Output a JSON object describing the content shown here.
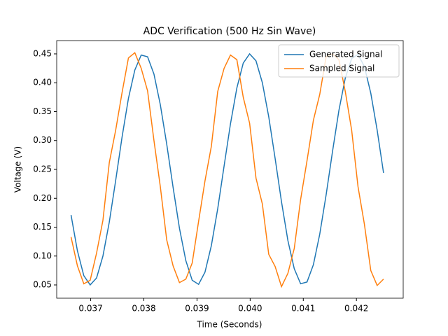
{
  "chart_data": {
    "type": "line",
    "title": "ADC Verification (500 Hz Sin Wave)",
    "xlabel": "Time (Seconds)",
    "ylabel": "Voltage (V)",
    "x": [
      0.03663,
      0.03675,
      0.03687,
      0.03699,
      0.03711,
      0.03723,
      0.03735,
      0.03747,
      0.03759,
      0.03771,
      0.03783,
      0.03795,
      0.03807,
      0.03819,
      0.03831,
      0.03843,
      0.03855,
      0.03867,
      0.03879,
      0.03891,
      0.03903,
      0.03915,
      0.03927,
      0.03939,
      0.03951,
      0.03963,
      0.03975,
      0.03987,
      0.03999,
      0.04011,
      0.04023,
      0.04035,
      0.04047,
      0.04059,
      0.04071,
      0.04083,
      0.04095,
      0.04107,
      0.04119,
      0.04131,
      0.04143,
      0.04155,
      0.04167,
      0.04179,
      0.04191,
      0.04203,
      0.04215,
      0.04227,
      0.04239,
      0.04251
    ],
    "series": [
      {
        "name": "Generated Signal",
        "color": "#1f77b4",
        "values": [
          0.171,
          0.109,
          0.066,
          0.05,
          0.062,
          0.1,
          0.159,
          0.231,
          0.306,
          0.373,
          0.422,
          0.448,
          0.445,
          0.415,
          0.362,
          0.294,
          0.219,
          0.148,
          0.092,
          0.058,
          0.051,
          0.072,
          0.118,
          0.182,
          0.256,
          0.329,
          0.391,
          0.434,
          0.45,
          0.438,
          0.4,
          0.341,
          0.269,
          0.194,
          0.127,
          0.078,
          0.052,
          0.055,
          0.085,
          0.138,
          0.206,
          0.281,
          0.352,
          0.408,
          0.442,
          0.449,
          0.428,
          0.382,
          0.318,
          0.244
        ]
      },
      {
        "name": "Sampled Signal",
        "color": "#ff7f0e",
        "values": [
          0.133,
          0.083,
          0.052,
          0.058,
          0.105,
          0.162,
          0.262,
          0.318,
          0.383,
          0.443,
          0.452,
          0.425,
          0.386,
          0.3,
          0.22,
          0.128,
          0.083,
          0.054,
          0.06,
          0.088,
          0.16,
          0.23,
          0.29,
          0.385,
          0.425,
          0.448,
          0.44,
          0.375,
          0.33,
          0.235,
          0.19,
          0.103,
          0.082,
          0.047,
          0.07,
          0.113,
          0.198,
          0.265,
          0.335,
          0.38,
          0.445,
          0.45,
          0.44,
          0.385,
          0.318,
          0.22,
          0.155,
          0.075,
          0.049,
          0.06
        ]
      }
    ],
    "xlim": [
      0.03636,
      0.04288
    ],
    "ylim": [
      0.027,
      0.473
    ],
    "xticks": [
      0.037,
      0.038,
      0.039,
      {
        "value": 0.04,
        "label": "0.040"
      },
      0.041,
      0.042
    ],
    "yticks": [
      0.05,
      {
        "value": 0.1,
        "label": "0.10"
      },
      0.15,
      {
        "value": 0.2,
        "label": "0.20"
      },
      0.25,
      {
        "value": 0.3,
        "label": "0.30"
      },
      0.35,
      {
        "value": 0.4,
        "label": "0.40"
      },
      0.45
    ],
    "legend": "upper right",
    "grid": false
  }
}
